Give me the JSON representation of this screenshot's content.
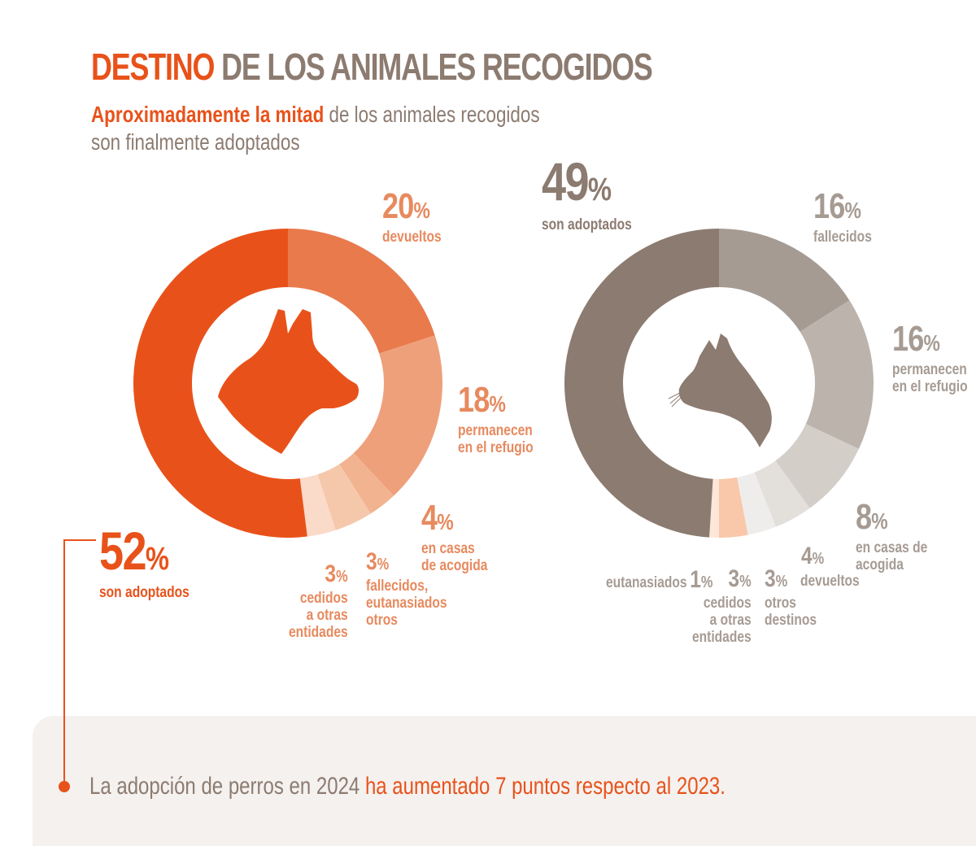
{
  "title": {
    "highlight": "DESTINO",
    "rest": "DE LOS ANIMALES RECOGIDOS"
  },
  "subtitle": {
    "highlight": "Aproximadamente la mitad",
    "rest1": "de los animales recogidos",
    "rest2": "son finalmente adoptados"
  },
  "footer": {
    "text1": "La adopción de perros en 2024",
    "highlight": "ha aumentado 7 puntos respecto al 2023."
  },
  "colors": {
    "dog": [
      "#e8521a",
      "#e87a4c",
      "#eea07b",
      "#f2b390",
      "#f6c8ab",
      "#fadac8",
      "#fde7d9"
    ],
    "cat": [
      "#8c7b70",
      "#a69b93",
      "#bcb3ac",
      "#d4cec9",
      "#e3dfdb",
      "#efedeb",
      "#f9c7a9",
      "#fde7d9"
    ]
  },
  "chart_data": [
    {
      "type": "pie",
      "name_icon": "dog-icon",
      "slices": [
        {
          "key": "devueltos",
          "value": 20,
          "num": "20",
          "pct": "%",
          "label": "devueltos"
        },
        {
          "key": "permanecen",
          "value": 18,
          "num": "18",
          "pct": "%",
          "label": "permanecen\nen el refugio"
        },
        {
          "key": "fallecidos",
          "value": 3,
          "num": "3",
          "pct": "%",
          "label": "fallecidos,\neutanasiados\notros"
        },
        {
          "key": "acogida",
          "value": 4,
          "num": "4",
          "pct": "%",
          "label": "en casas\nde acogida"
        },
        {
          "key": "cedidos",
          "value": 3,
          "num": "3",
          "pct": "%",
          "label": "cedidos\na otras\nentidades"
        },
        {
          "key": "adoptados",
          "value": 52,
          "num": "52",
          "pct": "%",
          "label": "son adoptados"
        }
      ]
    },
    {
      "type": "pie",
      "name_icon": "cat-icon",
      "slices": [
        {
          "key": "fallecidos",
          "value": 16,
          "num": "16",
          "pct": "%",
          "label": "fallecidos"
        },
        {
          "key": "permanecen",
          "value": 16,
          "num": "16",
          "pct": "%",
          "label": "permanecen\nen el refugio"
        },
        {
          "key": "acogida",
          "value": 8,
          "num": "8",
          "pct": "%",
          "label": "en casas de\nacogida"
        },
        {
          "key": "devueltos",
          "value": 4,
          "num": "4",
          "pct": "%",
          "label": "devueltos"
        },
        {
          "key": "otros",
          "value": 3,
          "num": "3",
          "pct": "%",
          "label": "otros\ndestinos"
        },
        {
          "key": "cedidos",
          "value": 3,
          "num": "3",
          "pct": "%",
          "label": "cedidos\na otras\nentidades"
        },
        {
          "key": "eutanasiados",
          "value": 1,
          "num": "1",
          "pct": "%",
          "label": "eutanasiados"
        },
        {
          "key": "adoptados",
          "value": 49,
          "num": "49",
          "pct": "%",
          "label": "son adoptados"
        }
      ]
    }
  ]
}
